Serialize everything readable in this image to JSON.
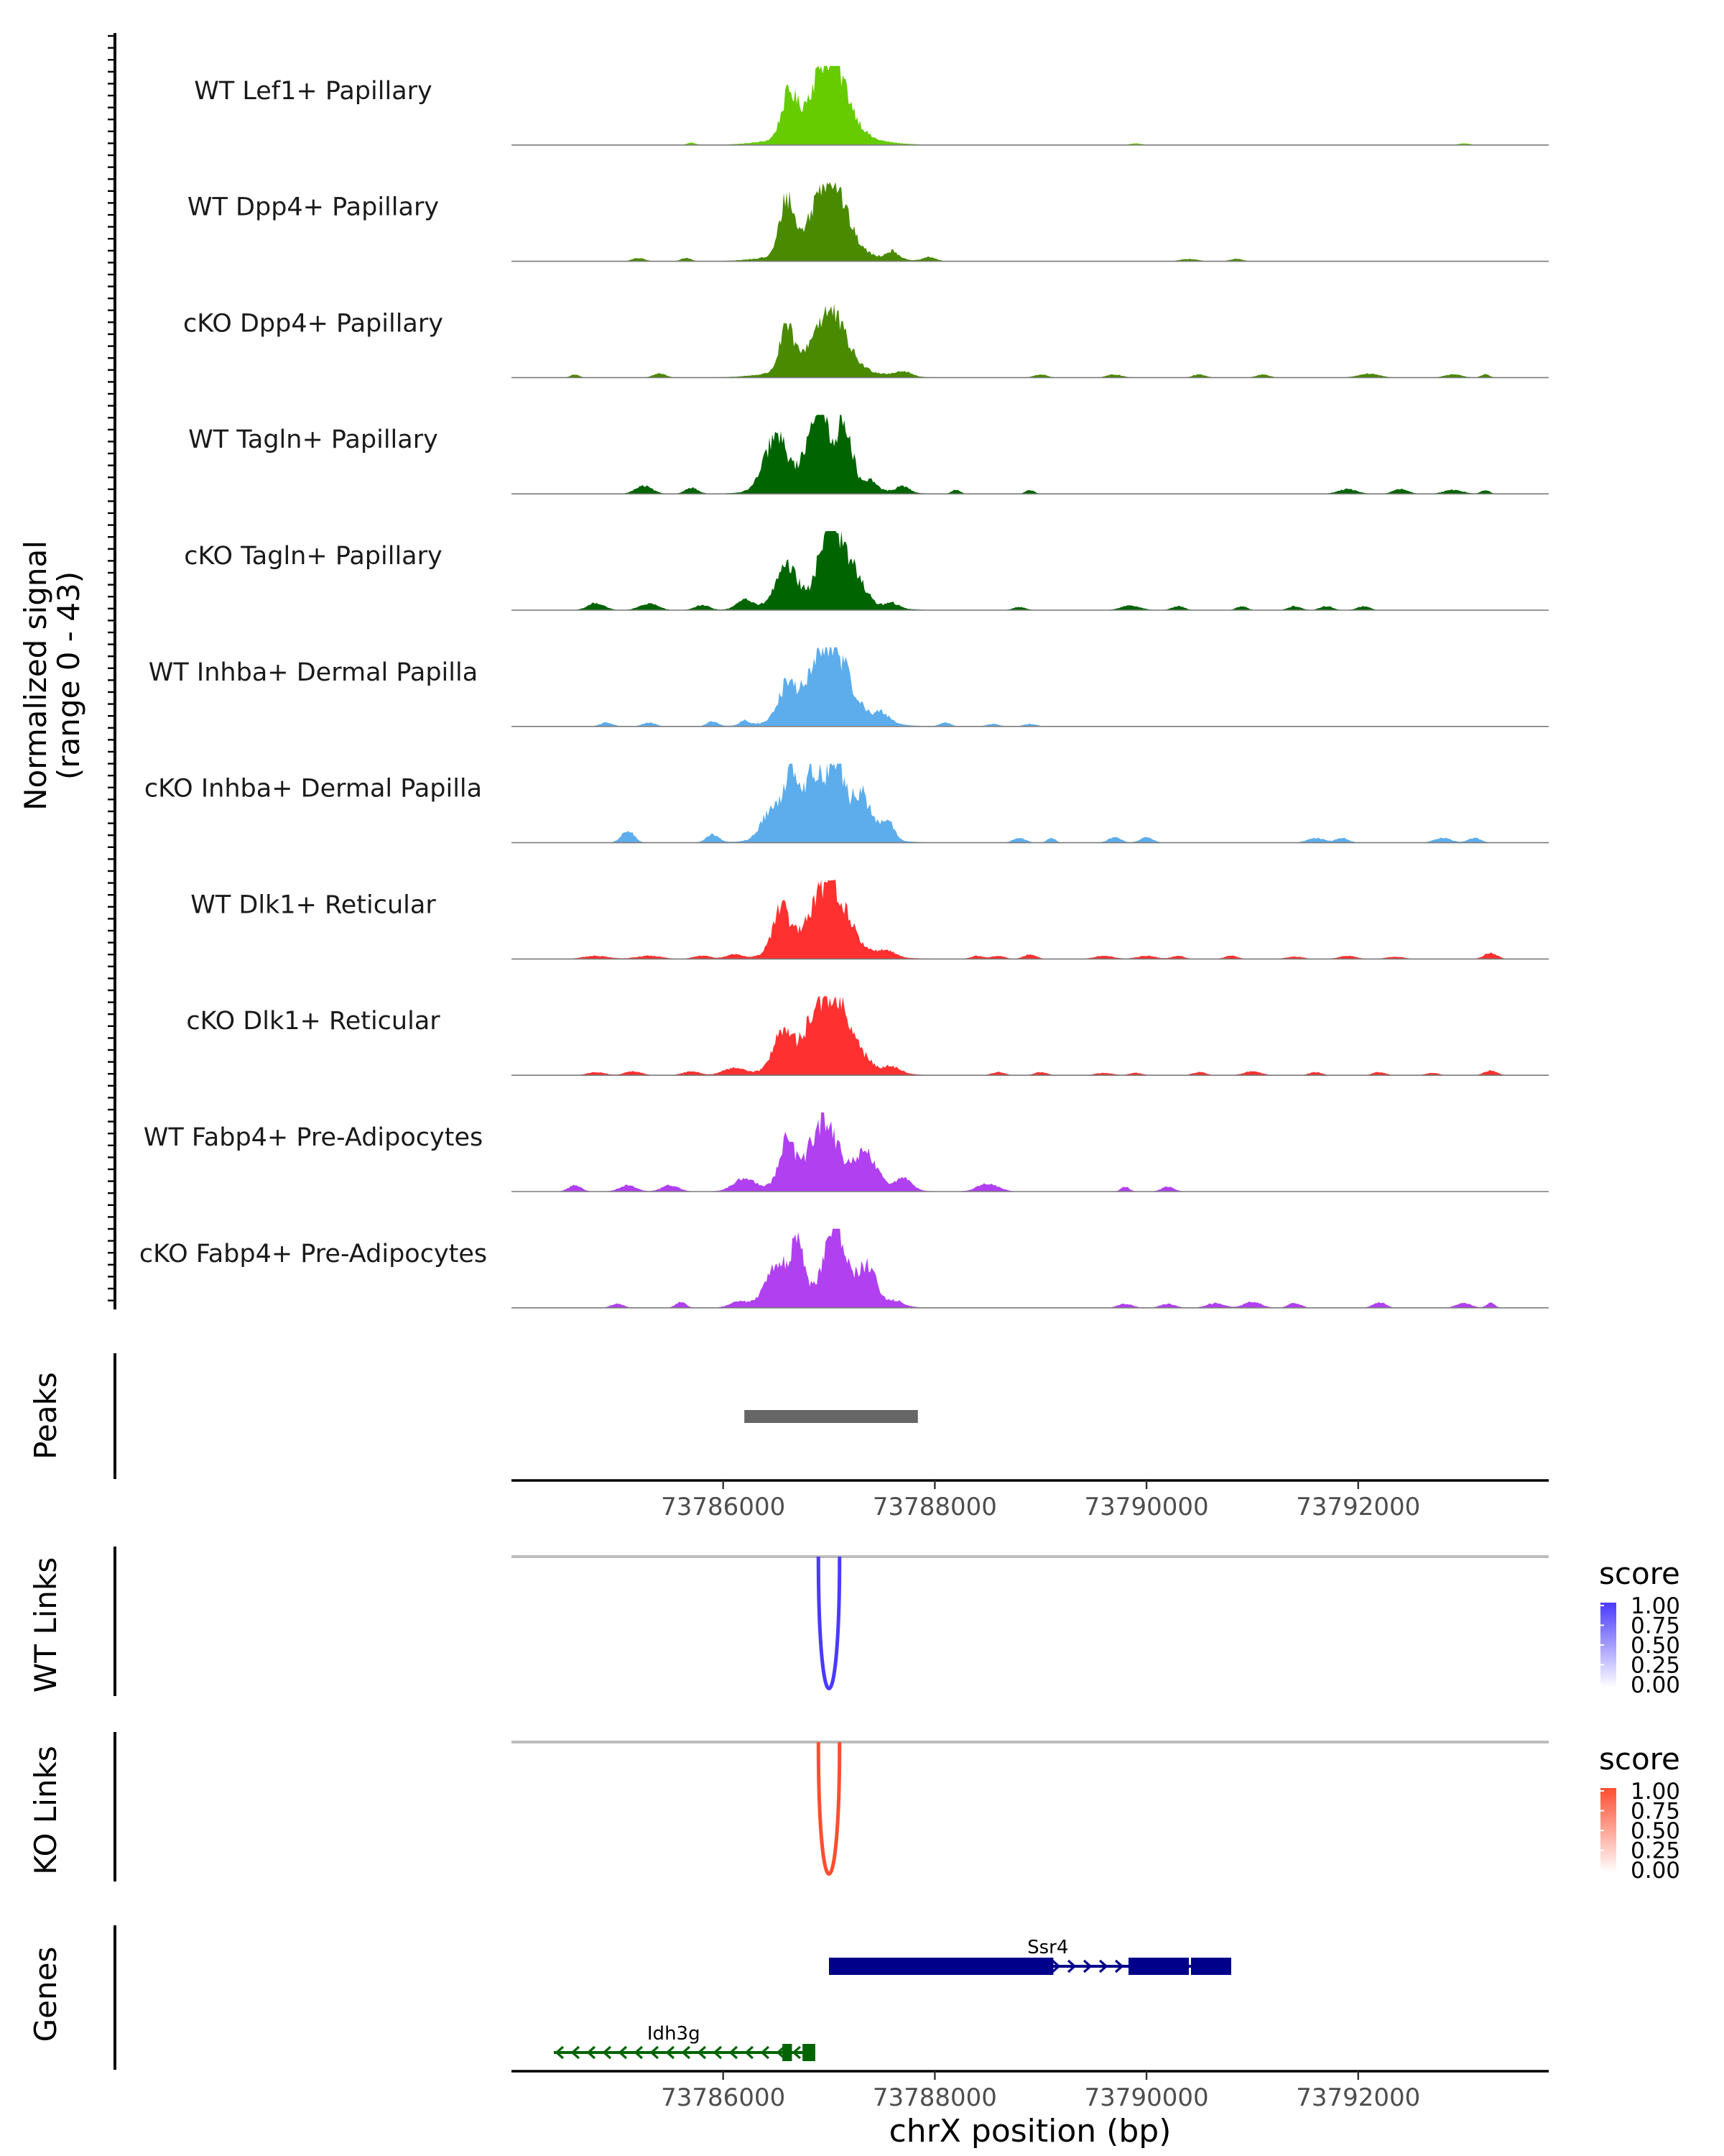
{
  "chart_data": {
    "type": "area",
    "title": "",
    "chromosome": "chrX",
    "xlabel": "chrX position (bp)",
    "xlim": [
      73784000,
      73793800
    ],
    "xticks": [
      73786000,
      73788000,
      73790000,
      73792000
    ],
    "xtick_labels": [
      "73786000",
      "73788000",
      "73790000",
      "73792000"
    ],
    "ylabel_line1": "Normalized signal",
    "ylabel_line2": "(range 0 - 43)",
    "ylim": [
      0,
      43
    ],
    "tracks": [
      {
        "name": "WT Lef1+ Papillary",
        "color": "#66CC00",
        "peaks": [
          [
            73786620,
            52,
            70
          ],
          [
            73787000,
            100,
            160
          ]
        ],
        "blips": [
          [
            73785700,
            3,
            40
          ],
          [
            73789900,
            2,
            60
          ],
          [
            73793000,
            2,
            60
          ]
        ]
      },
      {
        "name": "WT Dpp4+ Papillary",
        "color": "#4A8A00",
        "peaks": [
          [
            73786600,
            70,
            65
          ],
          [
            73787000,
            95,
            150
          ]
        ],
        "blips": [
          [
            73785200,
            4,
            60
          ],
          [
            73785650,
            4,
            50
          ],
          [
            73787600,
            10,
            60
          ],
          [
            73787950,
            5,
            60
          ],
          [
            73790400,
            3,
            80
          ],
          [
            73790850,
            3,
            60
          ]
        ]
      },
      {
        "name": "cKO Dpp4+ Papillary",
        "color": "#4A8A00",
        "peaks": [
          [
            73786600,
            53,
            65
          ],
          [
            73787000,
            70,
            150
          ]
        ],
        "blips": [
          [
            73784600,
            4,
            40
          ],
          [
            73785400,
            5,
            60
          ],
          [
            73787700,
            6,
            80
          ],
          [
            73789000,
            4,
            60
          ],
          [
            73789700,
            4,
            70
          ],
          [
            73790500,
            4,
            60
          ],
          [
            73791100,
            4,
            60
          ],
          [
            73792100,
            5,
            100
          ],
          [
            73792900,
            4,
            80
          ],
          [
            73793200,
            4,
            40
          ]
        ]
      },
      {
        "name": "WT Tagln+ Papillary",
        "color": "#006400",
        "peaks": [
          [
            73786500,
            65,
            110
          ],
          [
            73786900,
            100,
            100
          ],
          [
            73787150,
            75,
            70
          ]
        ],
        "blips": [
          [
            73785250,
            10,
            80
          ],
          [
            73785700,
            8,
            60
          ],
          [
            73787400,
            10,
            50
          ],
          [
            73787700,
            8,
            60
          ],
          [
            73788200,
            5,
            40
          ],
          [
            73788900,
            5,
            40
          ],
          [
            73791900,
            6,
            90
          ],
          [
            73792400,
            6,
            70
          ],
          [
            73792900,
            5,
            90
          ],
          [
            73793200,
            5,
            40
          ]
        ]
      },
      {
        "name": "cKO Tagln+ Papillary",
        "color": "#006400",
        "peaks": [
          [
            73786600,
            45,
            100
          ],
          [
            73787000,
            95,
            90
          ],
          [
            73787200,
            45,
            110
          ]
        ],
        "blips": [
          [
            73784800,
            9,
            80
          ],
          [
            73785300,
            8,
            90
          ],
          [
            73785800,
            6,
            70
          ],
          [
            73786200,
            12,
            70
          ],
          [
            73787600,
            6,
            60
          ],
          [
            73788800,
            4,
            60
          ],
          [
            73789850,
            6,
            90
          ],
          [
            73790300,
            5,
            60
          ],
          [
            73790900,
            5,
            50
          ],
          [
            73791400,
            5,
            60
          ],
          [
            73791700,
            5,
            60
          ],
          [
            73792050,
            5,
            60
          ]
        ]
      },
      {
        "name": "WT Inhba+ Dermal Papilla",
        "color": "#5DADEC",
        "peaks": [
          [
            73786600,
            40,
            80
          ],
          [
            73787000,
            95,
            170
          ]
        ],
        "blips": [
          [
            73784900,
            5,
            60
          ],
          [
            73785300,
            5,
            60
          ],
          [
            73785900,
            6,
            50
          ],
          [
            73786200,
            6,
            40
          ],
          [
            73787500,
            12,
            80
          ],
          [
            73788100,
            5,
            50
          ],
          [
            73788550,
            3,
            60
          ],
          [
            73788900,
            3,
            60
          ]
        ]
      },
      {
        "name": "cKO Inhba+ Dermal Papilla",
        "color": "#5DADEC",
        "peaks": [
          [
            73786450,
            35,
            90
          ],
          [
            73786650,
            90,
            70
          ],
          [
            73786850,
            75,
            70
          ],
          [
            73787050,
            100,
            80
          ],
          [
            73787300,
            55,
            90
          ],
          [
            73787550,
            25,
            60
          ]
        ],
        "blips": [
          [
            73785100,
            15,
            60
          ],
          [
            73785900,
            10,
            60
          ],
          [
            73788800,
            6,
            60
          ],
          [
            73789100,
            6,
            40
          ],
          [
            73789700,
            7,
            60
          ],
          [
            73790000,
            7,
            60
          ],
          [
            73791600,
            6,
            80
          ],
          [
            73791850,
            6,
            60
          ],
          [
            73792800,
            6,
            80
          ],
          [
            73793100,
            6,
            60
          ]
        ]
      },
      {
        "name": "WT Dlk1+ Reticular",
        "color": "#FF3030",
        "peaks": [
          [
            73786550,
            55,
            80
          ],
          [
            73787000,
            85,
            160
          ]
        ],
        "blips": [
          [
            73784800,
            4,
            120
          ],
          [
            73785300,
            4,
            120
          ],
          [
            73785800,
            4,
            80
          ],
          [
            73786100,
            5,
            70
          ],
          [
            73787550,
            8,
            70
          ],
          [
            73788400,
            4,
            60
          ],
          [
            73788600,
            4,
            60
          ],
          [
            73788900,
            6,
            60
          ],
          [
            73789600,
            4,
            90
          ],
          [
            73790000,
            4,
            90
          ],
          [
            73790300,
            4,
            60
          ],
          [
            73790800,
            4,
            60
          ],
          [
            73791400,
            3,
            80
          ],
          [
            73791900,
            4,
            80
          ],
          [
            73792350,
            3,
            80
          ],
          [
            73793250,
            8,
            60
          ]
        ]
      },
      {
        "name": "cKO Dlk1+ Reticular",
        "color": "#FF3030",
        "peaks": [
          [
            73786550,
            45,
            80
          ],
          [
            73787000,
            90,
            190
          ]
        ],
        "blips": [
          [
            73784800,
            4,
            80
          ],
          [
            73785150,
            5,
            80
          ],
          [
            73785700,
            5,
            80
          ],
          [
            73786100,
            8,
            100
          ],
          [
            73787600,
            7,
            80
          ],
          [
            73788600,
            4,
            60
          ],
          [
            73789000,
            4,
            60
          ],
          [
            73789600,
            3,
            80
          ],
          [
            73789900,
            3,
            60
          ],
          [
            73790500,
            4,
            60
          ],
          [
            73791000,
            5,
            80
          ],
          [
            73791600,
            4,
            60
          ],
          [
            73792200,
            4,
            60
          ],
          [
            73792700,
            3,
            60
          ],
          [
            73793250,
            6,
            60
          ]
        ]
      },
      {
        "name": "WT Fabp4+ Pre-Adipocytes",
        "color": "#B040F0",
        "peaks": [
          [
            73786600,
            55,
            70
          ],
          [
            73786950,
            75,
            130
          ],
          [
            73787350,
            40,
            100
          ]
        ],
        "blips": [
          [
            73784600,
            8,
            60
          ],
          [
            73785100,
            8,
            80
          ],
          [
            73785500,
            8,
            80
          ],
          [
            73786200,
            15,
            100
          ],
          [
            73787700,
            15,
            80
          ],
          [
            73788500,
            10,
            100
          ],
          [
            73789800,
            6,
            40
          ],
          [
            73790200,
            6,
            60
          ]
        ]
      },
      {
        "name": "cKO Fabp4+ Pre-Adipocytes",
        "color": "#B040F0",
        "peaks": [
          [
            73786500,
            45,
            100
          ],
          [
            73786700,
            65,
            70
          ],
          [
            73787050,
            100,
            90
          ],
          [
            73787350,
            45,
            100
          ]
        ],
        "blips": [
          [
            73785000,
            5,
            60
          ],
          [
            73785600,
            7,
            50
          ],
          [
            73786150,
            7,
            80
          ],
          [
            73787650,
            6,
            60
          ],
          [
            73789800,
            5,
            70
          ],
          [
            73790200,
            5,
            70
          ],
          [
            73790650,
            6,
            80
          ],
          [
            73791000,
            8,
            80
          ],
          [
            73791400,
            6,
            60
          ],
          [
            73792200,
            7,
            60
          ],
          [
            73793000,
            6,
            70
          ],
          [
            73793250,
            6,
            40
          ]
        ]
      }
    ],
    "peaks_label": "Peaks",
    "peaks_regions": [
      [
        73786200,
        73787840
      ]
    ],
    "wt_links_label": "WT Links",
    "ko_links_label": "KO Links",
    "wt_links": [
      {
        "start": 73786900,
        "end": 73787100,
        "score": 1.0
      }
    ],
    "ko_links": [
      {
        "start": 73786900,
        "end": 73787100,
        "score": 1.0
      }
    ],
    "legend_title": "score",
    "legend_ticks": [
      "1.00",
      "0.75",
      "0.50",
      "0.25",
      "0.00"
    ],
    "wt_link_color": "#4A3AFF",
    "ko_link_color": "#FF4D30",
    "genes_label": "Genes",
    "genes": [
      {
        "name": "Ssr4",
        "strand": "+",
        "start": 73787000,
        "end": 73790800,
        "color": "#00008B",
        "exons": [
          [
            73787000,
            73789120
          ],
          [
            73789830,
            73790400
          ],
          [
            73790420,
            73790800
          ]
        ],
        "row": 1
      },
      {
        "name": "Idh3g",
        "strand": "-",
        "start": 73784400,
        "end": 73786870,
        "color": "#006400",
        "exons": [
          [
            73786560,
            73786650
          ],
          [
            73786750,
            73786870
          ]
        ],
        "row": 2
      }
    ]
  }
}
